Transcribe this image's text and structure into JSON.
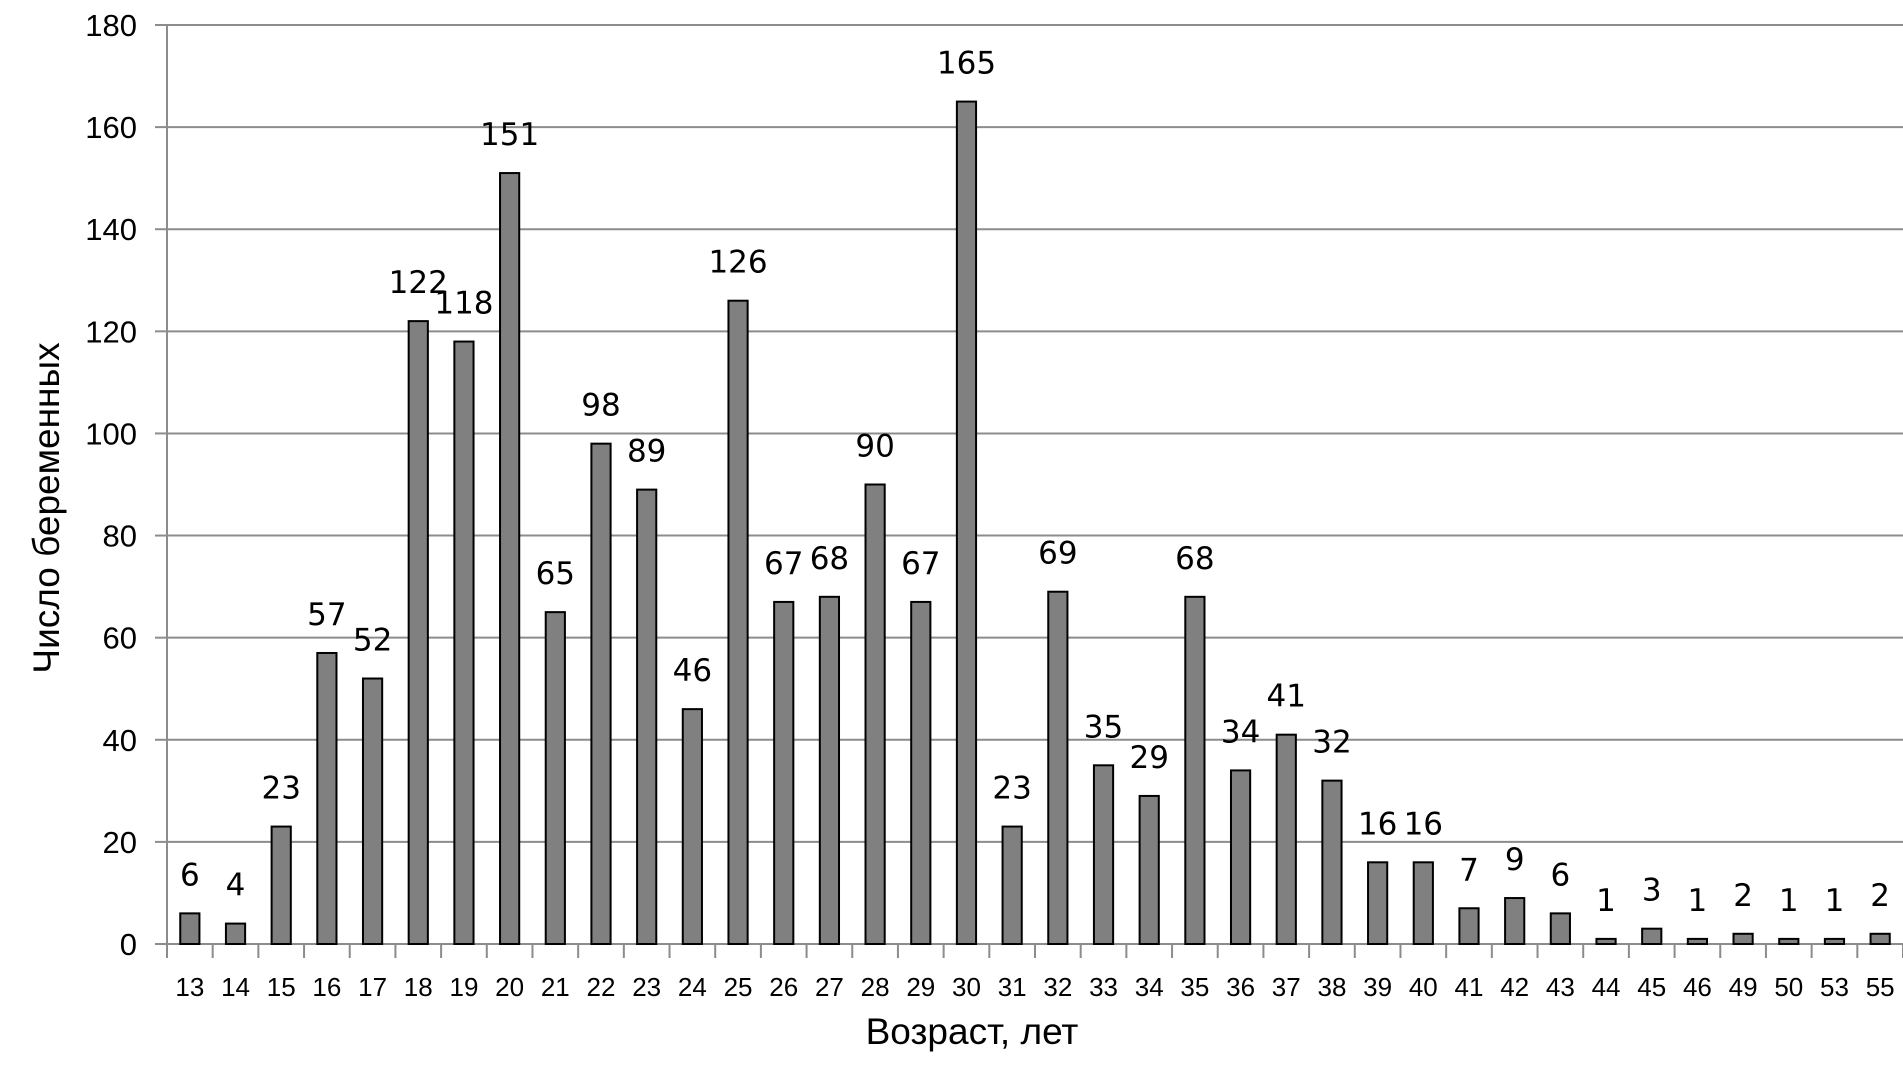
{
  "chart_data": {
    "type": "bar",
    "title": "",
    "xlabel": "Возраст, лет",
    "ylabel": "Число беременных",
    "ylim": [
      0,
      180
    ],
    "yticks": [
      0,
      20,
      40,
      60,
      80,
      100,
      120,
      140,
      160,
      180
    ],
    "grid": true,
    "categories": [
      "13",
      "14",
      "15",
      "16",
      "17",
      "18",
      "19",
      "20",
      "21",
      "22",
      "23",
      "24",
      "25",
      "26",
      "27",
      "28",
      "29",
      "30",
      "31",
      "32",
      "33",
      "34",
      "35",
      "36",
      "37",
      "38",
      "39",
      "40",
      "41",
      "42",
      "43",
      "44",
      "45",
      "46",
      "49",
      "50",
      "53",
      "55"
    ],
    "values": [
      6,
      4,
      23,
      57,
      52,
      122,
      118,
      151,
      65,
      98,
      89,
      46,
      126,
      67,
      68,
      90,
      67,
      165,
      23,
      69,
      35,
      29,
      68,
      34,
      41,
      32,
      16,
      16,
      7,
      9,
      6,
      1,
      3,
      1,
      2,
      1,
      1,
      2
    ],
    "colors": {
      "bar": "#808080",
      "bar_outline": "#000000",
      "grid": "#8c8c8c"
    }
  }
}
